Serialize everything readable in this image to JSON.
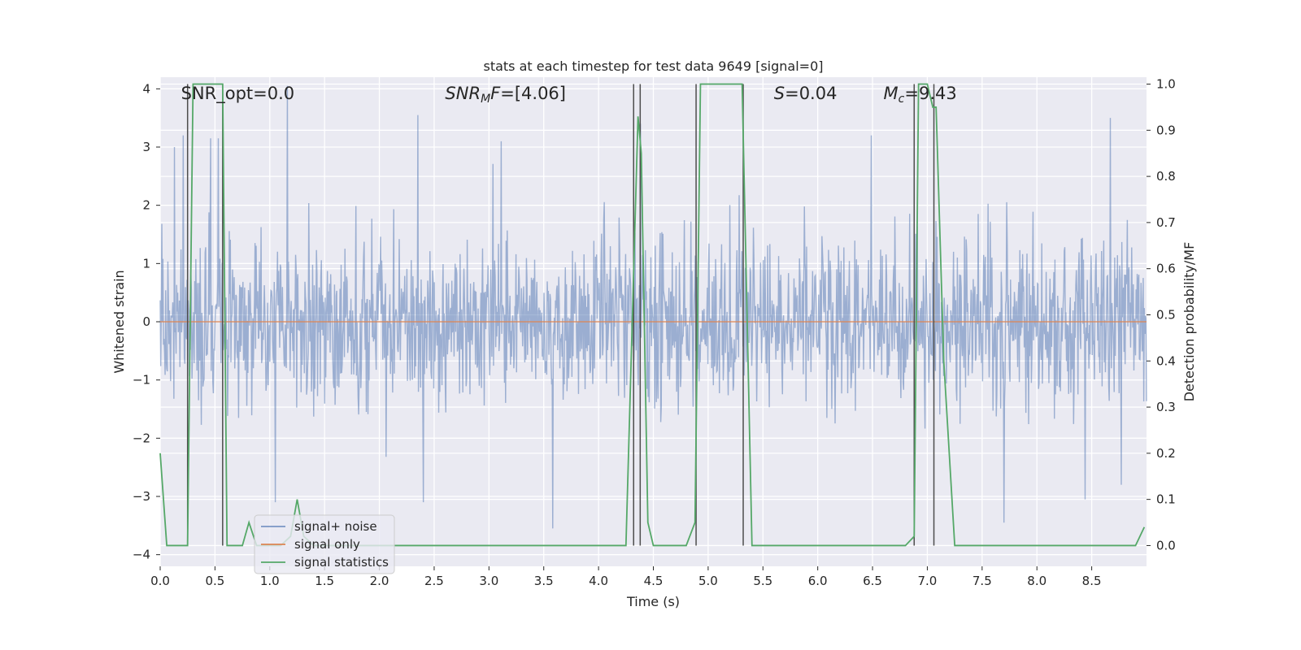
{
  "chart_data": {
    "type": "line",
    "title": "stats at each timestep for test data 9649 [signal=0]",
    "xlabel": "Time (s)",
    "ylabel": "Whitened strain",
    "ylabel_right": "Detection probability/MF",
    "xlim": [
      0.0,
      9.0
    ],
    "ylim": [
      -4.2,
      4.2
    ],
    "ylim_right": [
      -0.045,
      1.015
    ],
    "x_ticks": [
      0.0,
      0.5,
      1.0,
      1.5,
      2.0,
      2.5,
      3.0,
      3.5,
      4.0,
      4.5,
      5.0,
      5.5,
      6.0,
      6.5,
      7.0,
      7.5,
      8.0,
      8.5
    ],
    "x_tick_labels": [
      "0.0",
      "0.5",
      "1.0",
      "1.5",
      "2.0",
      "2.5",
      "3.0",
      "3.5",
      "4.0",
      "4.5",
      "5.0",
      "5.5",
      "6.0",
      "6.5",
      "7.0",
      "7.5",
      "8.0",
      "8.5"
    ],
    "y_ticks": [
      -4,
      -3,
      -2,
      -1,
      0,
      1,
      2,
      3,
      4
    ],
    "y_tick_labels": [
      "−4",
      "−3",
      "−2",
      "−1",
      "0",
      "1",
      "2",
      "3",
      "4"
    ],
    "y2_ticks": [
      0.0,
      0.1,
      0.2,
      0.3,
      0.4,
      0.5,
      0.6,
      0.7,
      0.8,
      0.9,
      1.0
    ],
    "y2_tick_labels": [
      "0.0",
      "0.1",
      "0.2",
      "0.3",
      "0.4",
      "0.5",
      "0.6",
      "0.7",
      "0.8",
      "0.9",
      "1.0"
    ],
    "grid": true,
    "legend_position": "bottom-left",
    "annotations": [
      {
        "x": 0.19,
        "text": "SNR_opt=0.0",
        "style": "normal"
      },
      {
        "x": 2.6,
        "text_main": "SNR",
        "text_sub": "M",
        "text_rest": "F=[4.06]",
        "style": "math"
      },
      {
        "x": 5.6,
        "text_main": "S",
        "text_rest": "=0.04",
        "style": "math"
      },
      {
        "x": 6.6,
        "text_main": "M",
        "text_sub": "c",
        "text_rest": "=9.43",
        "style": "math"
      }
    ],
    "series": [
      {
        "name": "signal+ noise",
        "color": "#4c72b0",
        "axis": "left",
        "kind": "noise",
        "envelope_sigma": 0.72,
        "n_samples": 1800,
        "seed": 9649,
        "peaks": [
          {
            "x": 0.13,
            "y": 3.0
          },
          {
            "x": 0.21,
            "y": 3.2
          },
          {
            "x": 0.46,
            "y": 3.15
          },
          {
            "x": 0.53,
            "y": 3.15
          },
          {
            "x": 1.16,
            "y": 4.05
          },
          {
            "x": 2.35,
            "y": 3.55
          },
          {
            "x": 3.11,
            "y": 3.1
          },
          {
            "x": 4.38,
            "y": 3.4
          },
          {
            "x": 6.49,
            "y": 3.2
          },
          {
            "x": 8.67,
            "y": 3.5
          },
          {
            "x": 1.05,
            "y": -3.1
          },
          {
            "x": 2.4,
            "y": -3.1
          },
          {
            "x": 3.58,
            "y": -3.55
          },
          {
            "x": 7.7,
            "y": -3.45
          },
          {
            "x": 8.44,
            "y": -3.05
          },
          {
            "x": 8.77,
            "y": -2.8
          }
        ]
      },
      {
        "name": "signal only",
        "color": "#dd8452",
        "axis": "left",
        "x": [
          0.0,
          9.0
        ],
        "y": [
          0.0,
          0.0
        ]
      },
      {
        "name": "signal statistics",
        "color": "#55a868",
        "axis": "right",
        "x": [
          0.0,
          0.06,
          0.15,
          0.25,
          0.3,
          0.35,
          0.4,
          0.45,
          0.5,
          0.57,
          0.61,
          0.75,
          0.81,
          0.88,
          0.95,
          1.0,
          1.1,
          1.19,
          1.25,
          1.31,
          1.4,
          1.5,
          1.6,
          1.7,
          1.8,
          2.0,
          2.5,
          3.0,
          3.5,
          4.0,
          4.25,
          4.36,
          4.39,
          4.45,
          4.5,
          4.8,
          4.88,
          4.93,
          5.0,
          5.2,
          5.31,
          5.4,
          5.45,
          5.5,
          6.0,
          6.5,
          6.8,
          6.88,
          6.92,
          7.0,
          7.05,
          7.08,
          7.15,
          7.25,
          7.3,
          8.0,
          8.5,
          8.9,
          8.98
        ],
        "y": [
          0.2,
          0.0,
          0.0,
          0.0,
          1.0,
          1.0,
          1.0,
          1.0,
          1.0,
          1.0,
          0.0,
          0.0,
          0.05,
          0.0,
          0.0,
          0.0,
          0.0,
          0.02,
          0.1,
          0.02,
          0.0,
          0.0,
          0.0,
          0.0,
          0.0,
          0.0,
          0.0,
          0.0,
          0.0,
          0.0,
          0.0,
          0.93,
          0.85,
          0.05,
          0.0,
          0.0,
          0.05,
          1.0,
          1.0,
          1.0,
          1.0,
          0.0,
          0.0,
          0.0,
          0.0,
          0.0,
          0.0,
          0.02,
          1.0,
          1.0,
          0.95,
          0.95,
          0.4,
          0.0,
          0.0,
          0.0,
          0.0,
          0.0,
          0.04
        ]
      }
    ],
    "vertical_markers": [
      {
        "x": 0.25,
        "ymin": -0.0,
        "ymax": 1.0
      },
      {
        "x": 0.57,
        "ymin": 0.0,
        "ymax": 1.0
      },
      {
        "x": 4.32,
        "ymin": 0.0,
        "ymax": 1.0
      },
      {
        "x": 4.38,
        "ymin": 0.0,
        "ymax": 1.0
      },
      {
        "x": 4.89,
        "ymin": 0.0,
        "ymax": 1.0
      },
      {
        "x": 5.32,
        "ymin": 0.0,
        "ymax": 1.0
      },
      {
        "x": 6.88,
        "ymin": 0.0,
        "ymax": 1.0
      },
      {
        "x": 7.06,
        "ymin": 0.0,
        "ymax": 1.0
      }
    ],
    "colors": {
      "plot_background": "#eaeaf2",
      "grid": "#ffffff",
      "marker_line": "#4d4d4d"
    }
  }
}
